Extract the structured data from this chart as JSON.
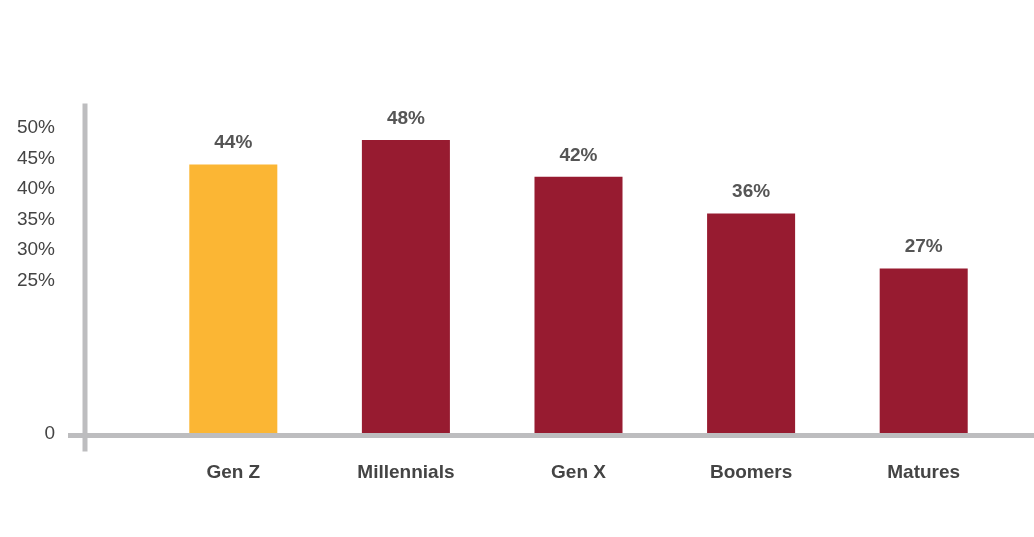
{
  "chart_data": {
    "type": "bar",
    "categories": [
      "Gen Z",
      "Millennials",
      "Gen X",
      "Boomers",
      "Matures"
    ],
    "values": [
      44,
      48,
      42,
      36,
      27
    ],
    "colors": [
      "#fbb634",
      "#971b30",
      "#971b30",
      "#971b30",
      "#971b30"
    ],
    "ylim": [
      0,
      54
    ],
    "yticks": [
      0,
      {
        "value": 25,
        "label": "25%"
      },
      {
        "value": 30,
        "label": "30%"
      },
      {
        "value": 35,
        "label": "35%"
      },
      {
        "value": 40,
        "label": "40%"
      },
      {
        "value": 45,
        "label": "45%"
      },
      {
        "value": 50,
        "label": "50%"
      }
    ],
    "value_labels": [
      "44%",
      "48%",
      "42%",
      "36%",
      "27%"
    ],
    "grid": false,
    "legend": false
  }
}
